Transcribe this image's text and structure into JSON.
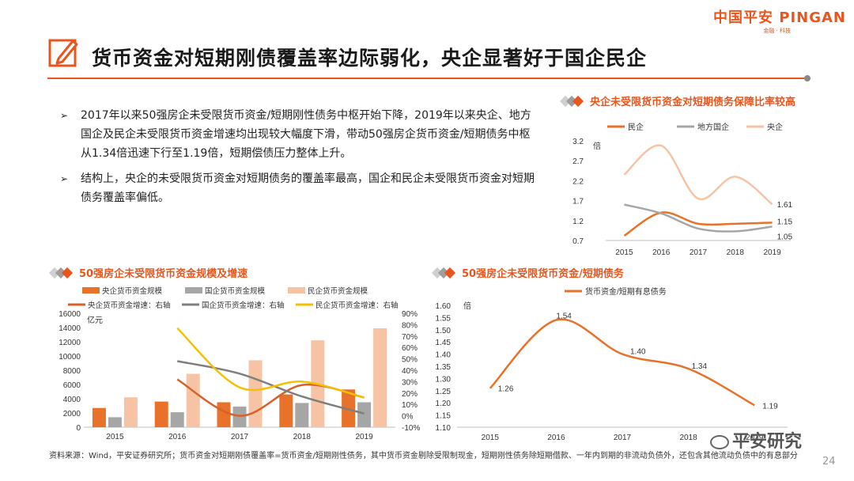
{
  "logo": {
    "main": "中国平安 PINGAN",
    "sub": "金融 · 科技"
  },
  "title": "货币资金对短期刚债覆盖率边际弱化，央企显著好于国企民企",
  "bullets": [
    "2017年以来50强房企未受限货币资金/短期刚性债务中枢开始下降，2019年以来央企、地方国企及民企未受限货币资金增速均出现较大幅度下滑，带动50强房企货币资金/短期债务中枢从1.34倍迅速下行至1.19倍，短期偿债压力整体上升。",
    "结构上，央企的未受限货币资金对短期债务的覆盖率最高，国企和民企未受限货币资金对短期债务覆盖率偏低。"
  ],
  "bullet_marker": "➢",
  "charts_meta": {
    "c1_title": "央企未受限货币资金对短期债务保障比率较高",
    "c2_title": "50强房企未受限货币资金规模及增速",
    "c3_title": "50强房企未受限货币资金/短期债务"
  },
  "chart_data": [
    {
      "id": "c1",
      "type": "line",
      "title": "央企未受限货币资金对短期债务保障比率较高",
      "ylabel": "倍",
      "categories": [
        "2015",
        "2016",
        "2017",
        "2018",
        "2019"
      ],
      "ylim": [
        0.7,
        3.2
      ],
      "yticks": [
        "0.7",
        "1.2",
        "1.7",
        "2.2",
        "2.7",
        "3.2"
      ],
      "series": [
        {
          "name": "民企",
          "color": "#e8722a",
          "values": [
            0.82,
            1.4,
            1.12,
            1.12,
            1.15
          ]
        },
        {
          "name": "地方国企",
          "color": "#a6a6a6",
          "values": [
            1.6,
            1.38,
            1.0,
            0.93,
            1.05
          ]
        },
        {
          "name": "央企",
          "color": "#f6c4a4",
          "values": [
            2.35,
            3.08,
            1.75,
            2.3,
            1.61
          ]
        }
      ],
      "data_labels": [
        "1.61",
        "1.15",
        "1.05"
      ]
    },
    {
      "id": "c2",
      "type": "bar",
      "title": "50强房企未受限货币资金规模及增速",
      "ylabel": "亿元",
      "categories": [
        "2015",
        "2016",
        "2017",
        "2018",
        "2019"
      ],
      "ylim": [
        0,
        16000
      ],
      "yticks": [
        "0",
        "2000",
        "4000",
        "6000",
        "8000",
        "10000",
        "12000",
        "14000",
        "16000"
      ],
      "y2lim": [
        -10,
        90
      ],
      "y2ticks": [
        "-10%",
        "0%",
        "10%",
        "20%",
        "30%",
        "40%",
        "50%",
        "60%",
        "70%",
        "80%",
        "90%"
      ],
      "bar_series": [
        {
          "name": "央企货币资金规模",
          "color": "#e8722a",
          "values": [
            2700,
            3600,
            3500,
            4600,
            5300
          ]
        },
        {
          "name": "国企货币资金规模",
          "color": "#a6a6a6",
          "values": [
            1400,
            2100,
            2900,
            3400,
            3500
          ]
        },
        {
          "name": "民企货币资金规模",
          "color": "#f6c4a4",
          "values": [
            4200,
            7500,
            9400,
            12200,
            13900
          ]
        }
      ],
      "line_series": [
        {
          "name": "央企货币资金增速：右轴",
          "color": "#d8602a",
          "values": [
            null,
            32,
            0,
            27,
            16
          ]
        },
        {
          "name": "国企货币资金增速：右轴",
          "color": "#7f7f7f",
          "values": [
            null,
            48,
            37,
            17,
            2
          ]
        },
        {
          "name": "民企货币资金增速：右轴",
          "color": "#f5c000",
          "values": [
            null,
            77,
            25,
            30,
            16
          ]
        }
      ]
    },
    {
      "id": "c3",
      "type": "line",
      "title": "50强房企未受限货币资金/短期债务",
      "ylabel": "倍",
      "categories": [
        "2015",
        "2016",
        "2017",
        "2018",
        "2019"
      ],
      "ylim": [
        1.1,
        1.6
      ],
      "yticks": [
        "1.10",
        "1.15",
        "1.20",
        "1.25",
        "1.30",
        "1.35",
        "1.40",
        "1.45",
        "1.50",
        "1.55",
        "1.60"
      ],
      "series": [
        {
          "name": "货币资金/短期有息债务",
          "color": "#e8722a",
          "values": [
            1.26,
            1.54,
            1.4,
            1.34,
            1.19
          ]
        }
      ],
      "data_labels": [
        "1.26",
        "1.54",
        "1.40",
        "1.34",
        "1.19"
      ]
    }
  ],
  "footer": "资料来源：Wind，平安证券研究所；货币资金对短期刚债覆盖率=货币资金/短期刚性债务，其中货币资金剔除受限制现金，短期刚性债务除短期借款、一年内到期的非流动负债外，还包含其他流动负债中的有息部分",
  "watermark": "平安研究",
  "page_number": "24"
}
